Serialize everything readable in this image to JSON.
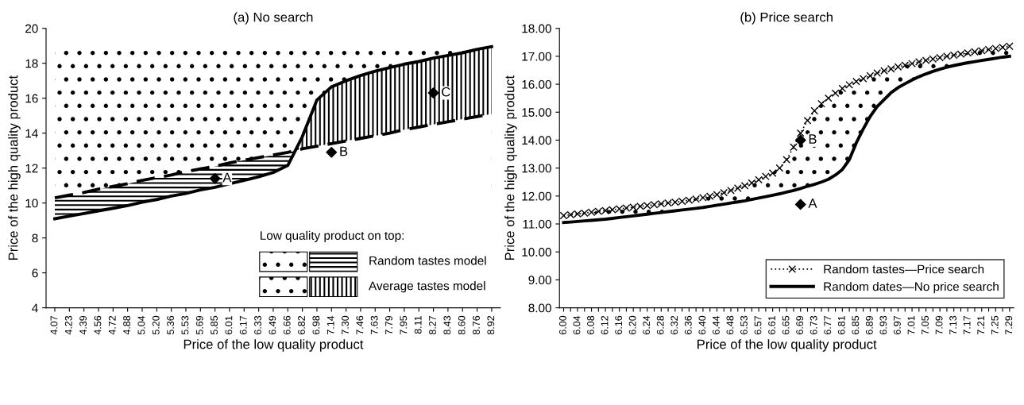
{
  "chart_data": [
    {
      "type": "line",
      "title": "(a) No search",
      "xlabel": "Price of the low quality product",
      "ylabel": "Price of the high quality product",
      "categories": [
        "4.07",
        "4.23",
        "4.39",
        "4.56",
        "4.72",
        "4.88",
        "5.04",
        "5.20",
        "5.36",
        "5.53",
        "5.69",
        "5.85",
        "6.01",
        "6.17",
        "6.33",
        "6.49",
        "6.66",
        "6.82",
        "6.98",
        "7.14",
        "7.30",
        "7.46",
        "7.63",
        "7.79",
        "7.95",
        "8.11",
        "8.27",
        "8.43",
        "8.60",
        "8.76",
        "8.92"
      ],
      "ylim": [
        4,
        20
      ],
      "yticks": [
        4,
        6,
        8,
        10,
        12,
        14,
        16,
        18,
        20
      ],
      "grid": false,
      "bands": [
        {
          "axis": "y",
          "from": 10.3,
          "to": 19,
          "color": "#000000"
        }
      ],
      "series": [
        {
          "color": "#000000",
          "line_style": "solid",
          "marker": "none",
          "values": [
            9.1,
            9.25,
            9.4,
            9.55,
            9.7,
            9.85,
            10.05,
            10.2,
            10.4,
            10.55,
            10.75,
            10.9,
            11.1,
            11.3,
            11.5,
            11.75,
            12.15,
            13.8,
            15.9,
            16.65,
            17.0,
            17.3,
            17.55,
            17.75,
            17.95,
            18.1,
            18.3,
            18.45,
            18.6,
            18.8,
            18.95
          ]
        },
        {
          "color": "#000000",
          "line_style": "dashed",
          "marker": "none",
          "values": [
            10.3,
            10.45,
            10.6,
            10.8,
            10.95,
            11.1,
            11.3,
            11.45,
            11.6,
            11.8,
            11.95,
            12.1,
            12.3,
            12.45,
            12.6,
            12.75,
            12.9,
            13.1,
            13.25,
            13.4,
            13.55,
            13.7,
            13.85,
            14.0,
            14.2,
            14.35,
            14.5,
            14.65,
            14.8,
            14.95,
            15.1
          ]
        },
        {
          "type": "scatter",
          "color": "#000000",
          "marker": "diamond",
          "x": [
            "5.85",
            "7.14",
            "8.27"
          ],
          "values": [
            11.4,
            12.9,
            16.3
          ]
        }
      ],
      "annotations": [
        "Low quality product on top:",
        "Random tastes model",
        "Average tastes model",
        {
          "text": "A",
          "x": "5.85",
          "y": 11.4
        },
        {
          "text": "B",
          "x": "7.14",
          "y": 12.9
        },
        {
          "text": "C",
          "x": "8.27",
          "y": 16.3
        }
      ]
    },
    {
      "type": "line",
      "title": "(b) Price search",
      "xlabel": "Price of the low quality product",
      "ylabel": "Price of the high quality product",
      "legend": "bottom right",
      "categories": [
        "6.00",
        null,
        "6.04",
        null,
        "6.08",
        null,
        "6.12",
        null,
        "6.16",
        null,
        "6.20",
        null,
        "6.24",
        null,
        "6.28",
        null,
        "6.32",
        null,
        "6.36",
        null,
        "6.40",
        null,
        "6.44",
        null,
        "6.48",
        null,
        "6.53",
        null,
        "6.57",
        null,
        "6.61",
        null,
        "6.65",
        null,
        "6.69",
        null,
        "6.73",
        null,
        "6.77",
        null,
        "6.81",
        null,
        "6.85",
        null,
        "6.89",
        null,
        "6.93",
        null,
        "6.97",
        null,
        "7.01",
        null,
        "7.05",
        null,
        "7.09",
        null,
        "7.13",
        null,
        "7.17",
        null,
        "7.21",
        null,
        "7.25",
        null,
        "7.29"
      ],
      "ylim": [
        8,
        18
      ],
      "yticks": [
        {
          "value": 8,
          "label": "8.00"
        },
        {
          "value": 9,
          "label": "9.00"
        },
        {
          "value": 10,
          "label": "10.00"
        },
        {
          "value": 11,
          "label": "11.00"
        },
        {
          "value": 12,
          "label": "12.00"
        },
        {
          "value": 13,
          "label": "13.00"
        },
        {
          "value": 14,
          "label": "14.00"
        },
        {
          "value": 15,
          "label": "15.00"
        },
        {
          "value": 16,
          "label": "16.00"
        },
        {
          "value": 17,
          "label": "17.00"
        },
        {
          "value": 18,
          "label": "18.00"
        }
      ],
      "grid": false,
      "series": [
        {
          "name": "Random tastes—Price search",
          "color": "#000000",
          "line_style": "dotted",
          "marker": "cross",
          "lower": [
            11.05,
            11.07,
            11.09,
            11.11,
            11.13,
            11.15,
            11.17,
            11.2,
            11.23,
            11.26,
            11.29,
            11.32,
            11.35,
            11.38,
            11.41,
            11.44,
            11.47,
            11.5,
            11.53,
            11.56,
            11.59,
            11.63,
            11.67,
            11.71,
            11.75,
            11.79,
            11.83,
            11.88,
            11.93,
            11.98,
            12.03,
            12.08,
            12.14,
            12.2,
            12.27,
            12.35,
            12.42,
            12.5,
            12.6,
            12.75,
            12.95,
            13.3,
            13.9,
            14.4,
            14.85,
            15.2,
            15.45,
            15.7,
            15.88,
            16.02,
            16.15,
            16.27,
            16.37,
            16.46,
            16.54,
            16.61,
            16.67,
            16.72,
            16.77,
            16.81,
            16.85,
            16.89,
            16.93,
            16.97,
            17.0
          ],
          "upper": [
            11.3,
            11.33,
            11.36,
            11.39,
            11.42,
            11.45,
            11.48,
            11.51,
            11.54,
            11.57,
            11.6,
            11.63,
            11.66,
            11.69,
            11.72,
            11.75,
            11.78,
            11.81,
            11.85,
            11.89,
            11.94,
            11.99,
            12.05,
            12.12,
            12.2,
            12.28,
            12.37,
            12.47,
            12.58,
            12.7,
            12.82,
            13.0,
            13.3,
            13.75,
            14.25,
            14.7,
            15.05,
            15.3,
            15.5,
            15.68,
            15.85,
            15.98,
            16.1,
            16.2,
            16.3,
            16.4,
            16.48,
            16.55,
            16.62,
            16.68,
            16.74,
            16.8,
            16.85,
            16.9,
            16.95,
            17.0,
            17.04,
            17.08,
            17.12,
            17.16,
            17.2,
            17.24,
            17.28,
            17.32,
            17.36
          ],
          "values": [
            11.3,
            11.33,
            11.36,
            11.39,
            11.42,
            11.45,
            11.48,
            11.51,
            11.54,
            11.57,
            11.6,
            11.63,
            11.66,
            11.69,
            11.72,
            11.75,
            11.78,
            11.81,
            11.85,
            11.89,
            11.94,
            11.99,
            12.05,
            12.12,
            12.2,
            12.28,
            12.37,
            12.47,
            12.58,
            12.7,
            12.82,
            13.0,
            13.3,
            13.75,
            14.25,
            14.7,
            15.05,
            15.3,
            15.5,
            15.68,
            15.85,
            15.98,
            16.1,
            16.2,
            16.3,
            16.4,
            16.48,
            16.55,
            16.62,
            16.68,
            16.74,
            16.8,
            16.85,
            16.9,
            16.95,
            17.0,
            17.04,
            17.08,
            17.12,
            17.16,
            17.2,
            17.24,
            17.28,
            17.32,
            17.36
          ]
        },
        {
          "name": "Random dates—No price search",
          "color": "#000000",
          "line_style": "solid",
          "marker": "none",
          "values": [
            11.05,
            11.07,
            11.09,
            11.11,
            11.13,
            11.15,
            11.17,
            11.2,
            11.23,
            11.26,
            11.29,
            11.32,
            11.35,
            11.38,
            11.41,
            11.44,
            11.47,
            11.5,
            11.53,
            11.56,
            11.59,
            11.63,
            11.67,
            11.71,
            11.75,
            11.79,
            11.83,
            11.88,
            11.93,
            11.98,
            12.03,
            12.08,
            12.14,
            12.2,
            12.27,
            12.35,
            12.42,
            12.5,
            12.6,
            12.75,
            12.95,
            13.3,
            13.9,
            14.4,
            14.85,
            15.2,
            15.45,
            15.7,
            15.88,
            16.02,
            16.15,
            16.27,
            16.37,
            16.46,
            16.54,
            16.61,
            16.67,
            16.72,
            16.77,
            16.81,
            16.85,
            16.89,
            16.93,
            16.97,
            17.0
          ]
        },
        {
          "type": "scatter",
          "color": "#000000",
          "marker": "diamond",
          "x": [
            "6.69",
            "6.69"
          ],
          "values": [
            11.7,
            14.0
          ]
        }
      ],
      "annotations": [
        {
          "text": "A",
          "x": "6.69",
          "y": 11.7
        },
        {
          "text": "B",
          "x": "6.69",
          "y": 14.0
        }
      ]
    }
  ]
}
